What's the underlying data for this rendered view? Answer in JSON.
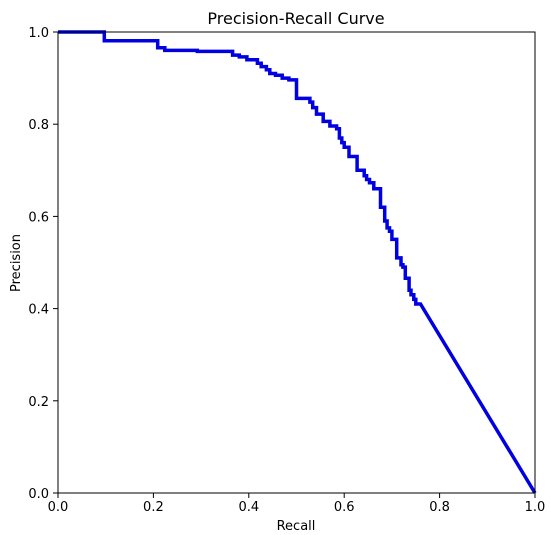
{
  "chart_data": {
    "type": "line",
    "title": "Precision-Recall Curve",
    "xlabel": "Recall",
    "ylabel": "Precision",
    "xlim": [
      0.0,
      1.0
    ],
    "ylim": [
      0.0,
      1.0
    ],
    "xticks": [
      "0.0",
      "0.2",
      "0.4",
      "0.6",
      "0.8",
      "1.0"
    ],
    "yticks": [
      "0.0",
      "0.2",
      "0.4",
      "0.6",
      "0.8",
      "1.0"
    ],
    "grid": false,
    "legend": "none",
    "series": [
      {
        "color": "#0000e0",
        "x": [
          0.0,
          0.097,
          0.097,
          0.209,
          0.209,
          0.224,
          0.224,
          0.292,
          0.292,
          0.366,
          0.366,
          0.38,
          0.38,
          0.396,
          0.396,
          0.418,
          0.418,
          0.426,
          0.426,
          0.437,
          0.437,
          0.444,
          0.444,
          0.456,
          0.456,
          0.47,
          0.47,
          0.484,
          0.484,
          0.5,
          0.5,
          0.528,
          0.528,
          0.534,
          0.534,
          0.542,
          0.542,
          0.556,
          0.556,
          0.57,
          0.57,
          0.584,
          0.584,
          0.59,
          0.59,
          0.595,
          0.595,
          0.6,
          0.6,
          0.61,
          0.61,
          0.627,
          0.627,
          0.642,
          0.642,
          0.647,
          0.647,
          0.653,
          0.653,
          0.662,
          0.662,
          0.676,
          0.676,
          0.685,
          0.685,
          0.69,
          0.69,
          0.695,
          0.695,
          0.7,
          0.7,
          0.71,
          0.71,
          0.719,
          0.719,
          0.723,
          0.723,
          0.728,
          0.728,
          0.736,
          0.736,
          0.74,
          0.74,
          0.746,
          0.746,
          0.75,
          0.75,
          0.76,
          1.0
        ],
        "y": [
          1.0,
          1.0,
          0.981,
          0.981,
          0.966,
          0.966,
          0.96,
          0.96,
          0.958,
          0.958,
          0.95,
          0.95,
          0.946,
          0.946,
          0.94,
          0.94,
          0.932,
          0.932,
          0.925,
          0.925,
          0.918,
          0.918,
          0.91,
          0.91,
          0.906,
          0.906,
          0.9,
          0.9,
          0.896,
          0.896,
          0.856,
          0.856,
          0.848,
          0.848,
          0.836,
          0.836,
          0.822,
          0.822,
          0.806,
          0.806,
          0.796,
          0.796,
          0.79,
          0.79,
          0.77,
          0.77,
          0.76,
          0.76,
          0.75,
          0.75,
          0.73,
          0.73,
          0.7,
          0.7,
          0.688,
          0.688,
          0.68,
          0.68,
          0.673,
          0.673,
          0.66,
          0.66,
          0.62,
          0.62,
          0.59,
          0.59,
          0.575,
          0.575,
          0.568,
          0.568,
          0.55,
          0.55,
          0.51,
          0.51,
          0.495,
          0.495,
          0.49,
          0.49,
          0.466,
          0.466,
          0.44,
          0.44,
          0.43,
          0.43,
          0.42,
          0.42,
          0.41,
          0.41,
          0.0
        ]
      }
    ]
  }
}
